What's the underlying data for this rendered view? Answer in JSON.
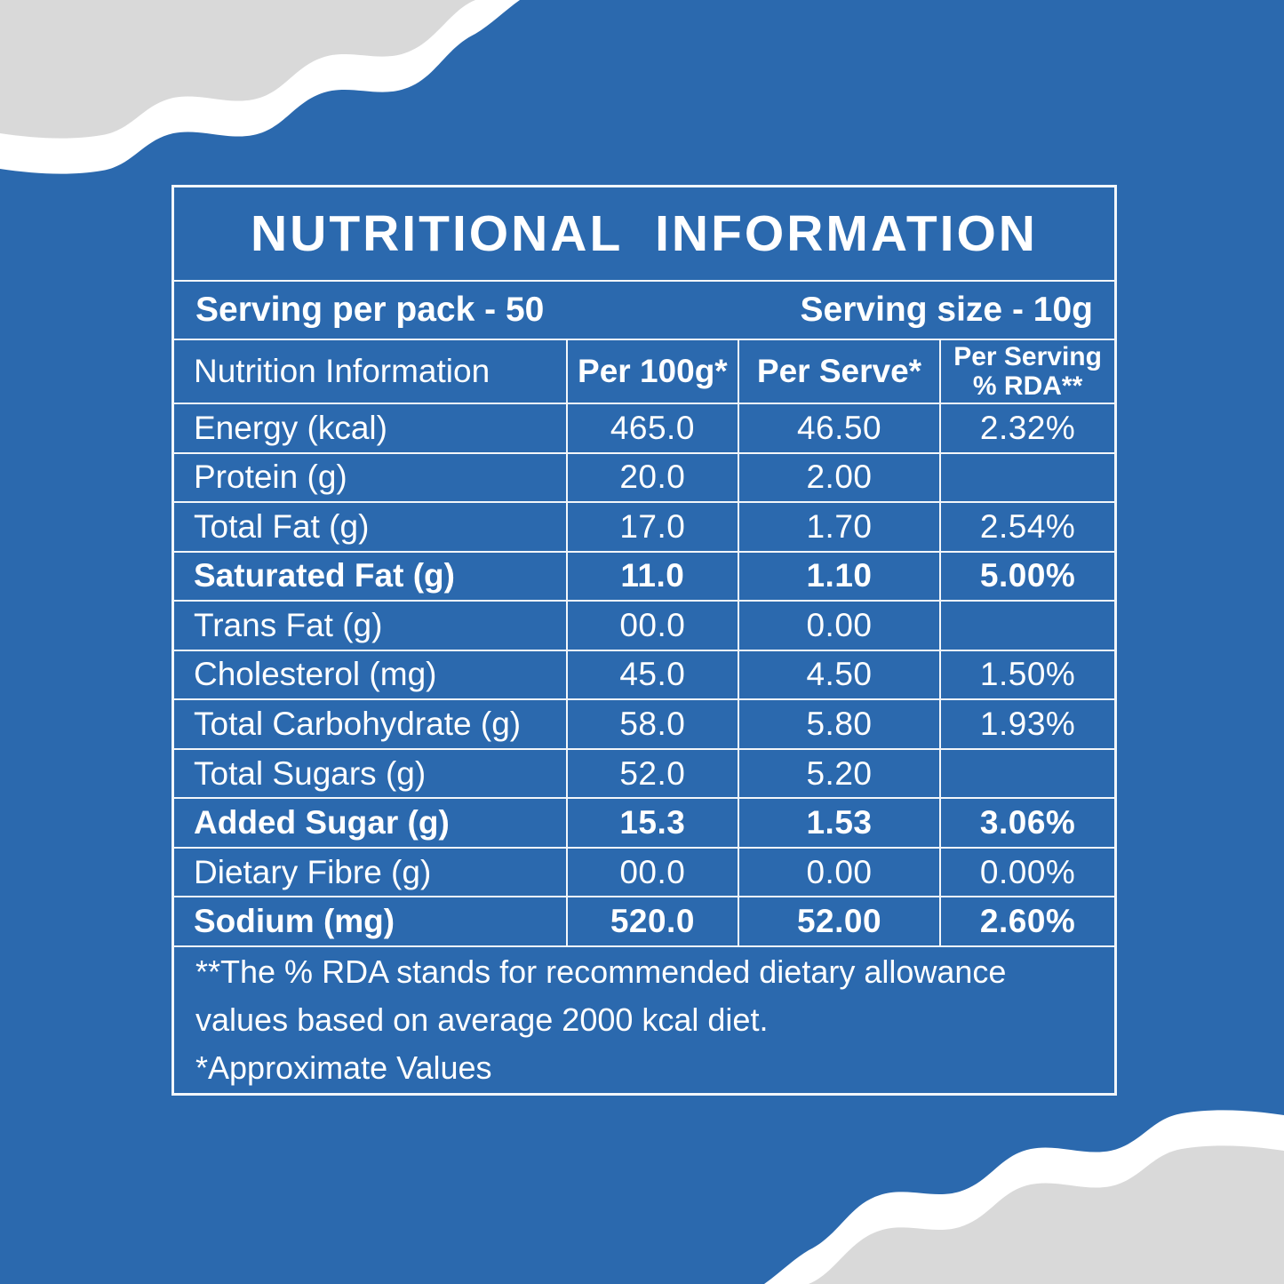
{
  "colors": {
    "background_blue": "#2b69ae",
    "decor_gray": "#d9d9d9",
    "decor_white": "#ffffff",
    "line_white": "#f2f6fa",
    "text_white": "#ffffff"
  },
  "panel": {
    "title": "NUTRITIONAL INFORMATION",
    "serving_per_pack": "Serving per pack - 50",
    "serving_size": "Serving size - 10g",
    "table": {
      "columns": [
        {
          "label": "Nutrition Information"
        },
        {
          "label": "Per 100g*"
        },
        {
          "label": "Per Serve*"
        },
        {
          "label_line1": "Per Serving",
          "label_line2": "% RDA**"
        }
      ],
      "rows": [
        {
          "label": "Energy (kcal)",
          "per_100g": "465.0",
          "per_serve": "46.50",
          "rda": "2.32%",
          "bold": false
        },
        {
          "label": "Protein (g)",
          "per_100g": "20.0",
          "per_serve": "2.00",
          "rda": "",
          "bold": false
        },
        {
          "label": "Total Fat (g)",
          "per_100g": "17.0",
          "per_serve": "1.70",
          "rda": "2.54%",
          "bold": false
        },
        {
          "label": "Saturated Fat (g)",
          "per_100g": "11.0",
          "per_serve": "1.10",
          "rda": "5.00%",
          "bold": true
        },
        {
          "label": "Trans Fat (g)",
          "per_100g": "00.0",
          "per_serve": "0.00",
          "rda": "",
          "bold": false
        },
        {
          "label": "Cholesterol (mg)",
          "per_100g": "45.0",
          "per_serve": "4.50",
          "rda": "1.50%",
          "bold": false
        },
        {
          "label": "Total Carbohydrate (g)",
          "per_100g": "58.0",
          "per_serve": "5.80",
          "rda": "1.93%",
          "bold": false
        },
        {
          "label": "Total Sugars (g)",
          "per_100g": "52.0",
          "per_serve": "5.20",
          "rda": "",
          "bold": false
        },
        {
          "label": "Added Sugar (g)",
          "per_100g": "15.3",
          "per_serve": "1.53",
          "rda": "3.06%",
          "bold": true
        },
        {
          "label": "Dietary Fibre (g)",
          "per_100g": "00.0",
          "per_serve": "0.00",
          "rda": "0.00%",
          "bold": false
        },
        {
          "label": "Sodium (mg)",
          "per_100g": "520.0",
          "per_serve": "52.00",
          "rda": "2.60%",
          "bold": true
        }
      ]
    },
    "footnotes": [
      "**The % RDA stands for recommended dietary allowance",
      "values based on average 2000 kcal diet.",
      "*Approximate Values"
    ]
  }
}
